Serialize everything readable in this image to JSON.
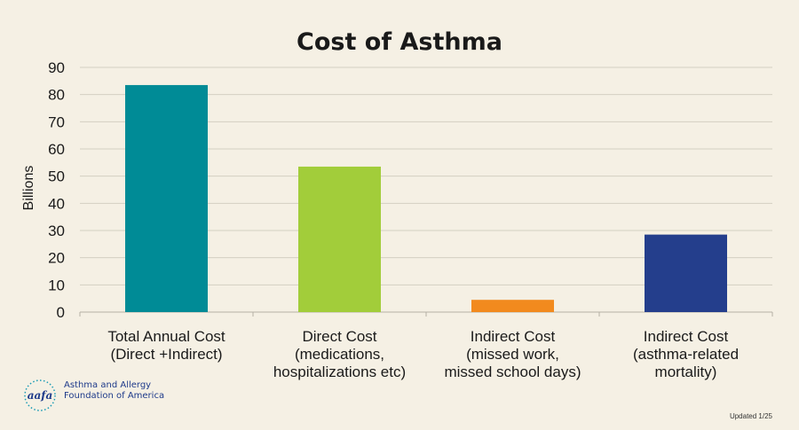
{
  "chart_data": {
    "type": "bar",
    "title": "Cost of Asthma",
    "ylabel": "Billions",
    "xlabel": "",
    "ylim": [
      0,
      90
    ],
    "yticks": [
      0,
      10,
      20,
      30,
      40,
      50,
      60,
      70,
      80,
      90
    ],
    "grid": true,
    "categories": [
      [
        "Total Annual Cost",
        "(Direct +Indirect)"
      ],
      [
        "Direct Cost",
        "(medications,",
        "hospitalizations etc)"
      ],
      [
        "Indirect Cost",
        "(missed work,",
        "missed school days)"
      ],
      [
        "Indirect Cost",
        "(asthma-related",
        "mortality)"
      ]
    ],
    "values": [
      83.5,
      53.5,
      4.5,
      28.5
    ],
    "colors": [
      "#008b96",
      "#a2cd3a",
      "#f28a1e",
      "#243e8c"
    ]
  },
  "logo": {
    "text": "Asthma and Allergy\nFoundation of America",
    "mark": "aafa"
  },
  "footnote": "Updated 1/25"
}
